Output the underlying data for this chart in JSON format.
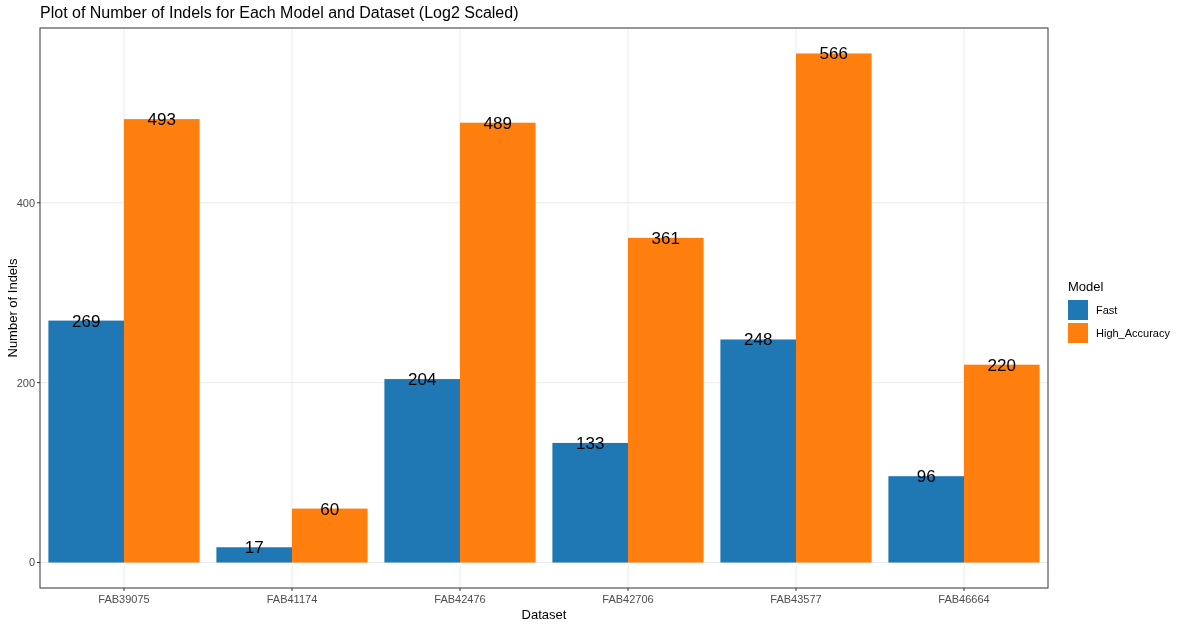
{
  "chart_data": {
    "type": "bar",
    "title": "Plot of Number of Indels for Each Model and Dataset (Log2 Scaled)",
    "xlabel": "Dataset",
    "ylabel": "Number of Indels",
    "legend_title": "Model",
    "categories": [
      "FAB39075",
      "FAB41174",
      "FAB42476",
      "FAB42706",
      "FAB43577",
      "FAB46664"
    ],
    "series": [
      {
        "name": "Fast",
        "color": "#1f77b4",
        "values": [
          269,
          17,
          204,
          133,
          248,
          96
        ]
      },
      {
        "name": "High_Accuracy",
        "color": "#ff7f0e",
        "values": [
          493,
          60,
          489,
          361,
          566,
          220
        ]
      }
    ],
    "ylim": [
      -28.3,
      594.3
    ],
    "yticks": [
      0,
      200,
      400
    ],
    "grid": true,
    "legend": "right",
    "data_labels": true
  }
}
